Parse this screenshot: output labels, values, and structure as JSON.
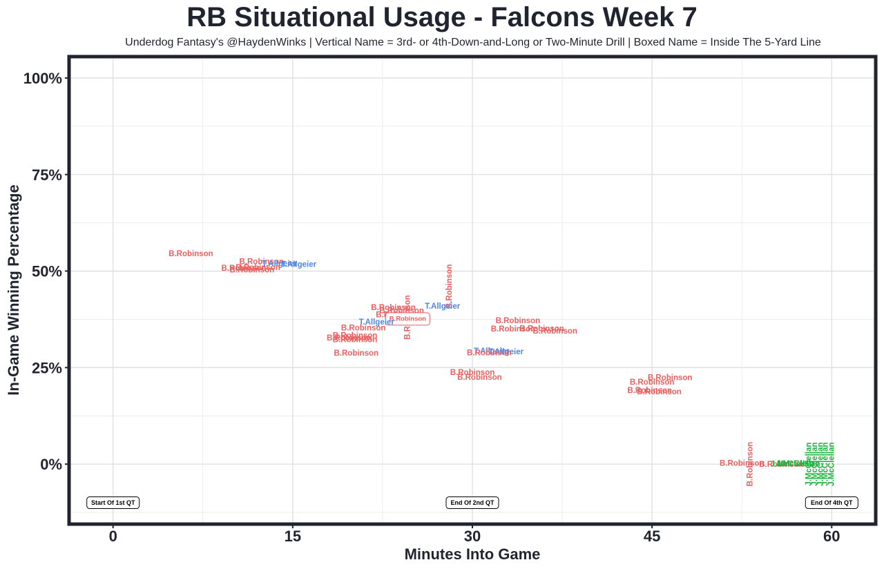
{
  "chart_data": {
    "type": "scatter",
    "title": "RB Situational Usage - Falcons Week 7",
    "subtitle": "Underdog Fantasy's @HaydenWinks | Vertical Name = 3rd- or 4th-Down-and-Long or Two-Minute Drill | Boxed Name = Inside The 5-Yard Line",
    "xlabel": "Minutes Into Game",
    "ylabel": "In-Game Winning Percentage",
    "xlim": [
      -3.5,
      63.5
    ],
    "ylim": [
      -15,
      105
    ],
    "xticks": [
      0,
      15,
      30,
      45,
      60
    ],
    "xtick_labels": [
      "0",
      "15",
      "30",
      "45",
      "60"
    ],
    "yticks": [
      0,
      25,
      50,
      75,
      100
    ],
    "ytick_labels": [
      "0%",
      "25%",
      "50%",
      "75%",
      "100%"
    ],
    "grid": true,
    "colors": {
      "B.Robinson": "#ee5e5e",
      "T.Allgeier": "#4f86e8",
      "J.McClellan": "#18b43c"
    },
    "annotations": [
      {
        "x": 0,
        "y": -10,
        "text": "Start Of 1st QT"
      },
      {
        "x": 30,
        "y": -10,
        "text": "End Of 2nd QT"
      },
      {
        "x": 60,
        "y": -10,
        "text": "End Of 4th QT"
      }
    ],
    "points": [
      {
        "player": "B.Robinson",
        "x": 6.5,
        "y": 54.4,
        "style": "normal"
      },
      {
        "player": "B.Robinson",
        "x": 12.4,
        "y": 52.3,
        "style": "normal"
      },
      {
        "player": "T.Allgeier",
        "x": 13.9,
        "y": 51.8,
        "style": "normal"
      },
      {
        "player": "T.Allgeier",
        "x": 15.5,
        "y": 51.6,
        "style": "normal"
      },
      {
        "player": "B.Robinson",
        "x": 12.1,
        "y": 50.8,
        "style": "normal"
      },
      {
        "player": "B.Robinson",
        "x": 10.9,
        "y": 50.6,
        "style": "normal"
      },
      {
        "player": "B.Robinson",
        "x": 11.6,
        "y": 50.2,
        "style": "normal"
      },
      {
        "player": "B.Robinson",
        "x": 28.1,
        "y": 46.0,
        "style": "vertical"
      },
      {
        "player": "B.Robinson",
        "x": 24.6,
        "y": 38.0,
        "style": "vertical"
      },
      {
        "player": "T.Allgeier",
        "x": 27.5,
        "y": 40.8,
        "style": "normal"
      },
      {
        "player": "B.Robinson",
        "x": 23.4,
        "y": 40.4,
        "style": "normal"
      },
      {
        "player": "B.Robinson",
        "x": 24.1,
        "y": 39.6,
        "style": "normal"
      },
      {
        "player": "B.Robinson",
        "x": 23.8,
        "y": 38.6,
        "style": "normal"
      },
      {
        "player": "B.Robinson",
        "x": 24.6,
        "y": 37.6,
        "style": "boxed"
      },
      {
        "player": "T.Allgeier",
        "x": 22.0,
        "y": 36.7,
        "style": "normal"
      },
      {
        "player": "B.Robinson",
        "x": 20.9,
        "y": 35.2,
        "style": "normal"
      },
      {
        "player": "B.Robinson",
        "x": 20.2,
        "y": 33.2,
        "style": "normal"
      },
      {
        "player": "B.Robinson",
        "x": 19.7,
        "y": 32.6,
        "style": "normal"
      },
      {
        "player": "B.Robinson",
        "x": 20.2,
        "y": 32.1,
        "style": "normal"
      },
      {
        "player": "B.Robinson",
        "x": 20.3,
        "y": 28.6,
        "style": "normal"
      },
      {
        "player": "B.Robinson",
        "x": 33.8,
        "y": 37.0,
        "style": "normal"
      },
      {
        "player": "B.Robinson",
        "x": 33.4,
        "y": 34.9,
        "style": "normal"
      },
      {
        "player": "B.Robinson",
        "x": 35.8,
        "y": 35.0,
        "style": "normal"
      },
      {
        "player": "B.Robinson",
        "x": 36.9,
        "y": 34.4,
        "style": "normal"
      },
      {
        "player": "T.Allgeier",
        "x": 31.6,
        "y": 29.2,
        "style": "normal"
      },
      {
        "player": "T.Allgeier",
        "x": 32.8,
        "y": 29.0,
        "style": "normal"
      },
      {
        "player": "B.Robinson",
        "x": 31.4,
        "y": 28.7,
        "style": "normal"
      },
      {
        "player": "B.Robinson",
        "x": 30.0,
        "y": 23.6,
        "style": "normal"
      },
      {
        "player": "B.Robinson",
        "x": 30.6,
        "y": 22.4,
        "style": "normal"
      },
      {
        "player": "B.Robinson",
        "x": 46.5,
        "y": 22.3,
        "style": "normal"
      },
      {
        "player": "B.Robinson",
        "x": 45.0,
        "y": 21.1,
        "style": "normal"
      },
      {
        "player": "B.Robinson",
        "x": 44.8,
        "y": 19.0,
        "style": "normal"
      },
      {
        "player": "B.Robinson",
        "x": 45.6,
        "y": 18.6,
        "style": "normal"
      },
      {
        "player": "B.Robinson",
        "x": 52.5,
        "y": 0.1,
        "style": "normal"
      },
      {
        "player": "B.Robinson",
        "x": 53.2,
        "y": 0.0,
        "style": "vertical"
      },
      {
        "player": "B.Robinson",
        "x": 55.8,
        "y": -0.2,
        "style": "normal"
      },
      {
        "player": "J.McClellan",
        "x": 56.7,
        "y": -0.1,
        "style": "normal"
      },
      {
        "player": "J.McClellan",
        "x": 57.2,
        "y": 0.0,
        "style": "normal"
      },
      {
        "player": "J.McClellan",
        "x": 58.1,
        "y": 0.0,
        "style": "vertical"
      },
      {
        "player": "J.McClellan",
        "x": 58.6,
        "y": 0.0,
        "style": "vertical"
      },
      {
        "player": "J.McClellan",
        "x": 59.1,
        "y": 0.0,
        "style": "vertical"
      },
      {
        "player": "J.McClellan",
        "x": 59.5,
        "y": 0.0,
        "style": "vertical"
      },
      {
        "player": "J.McClellan",
        "x": 60.0,
        "y": 0.0,
        "style": "vertical"
      }
    ]
  }
}
